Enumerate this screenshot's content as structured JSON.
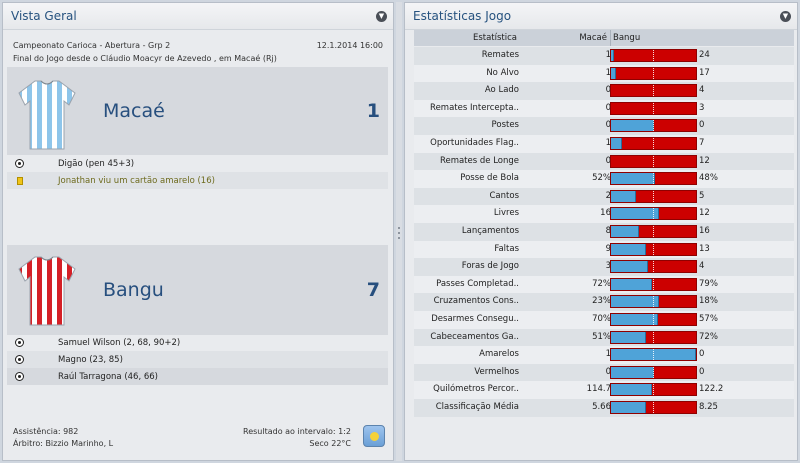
{
  "left_panel": {
    "title": "Vista Geral",
    "competition": "Campeonato Carioca - Abertura - Grp 2",
    "date": "12.1.2014 16:00",
    "status": "Final do Jogo desde o Cláudio Moacyr de Azevedo , em Macaé (Rj)",
    "home": {
      "name": "Macaé",
      "score": "1",
      "shirt_colors": [
        "#8ec5ea",
        "#ffffff"
      ],
      "events": [
        {
          "type": "goal-icon",
          "text": "Digão (pen 45+3)"
        },
        {
          "type": "yellow-card-icon",
          "text": "Jonathan viu um cartão amarelo (16)"
        }
      ]
    },
    "away": {
      "name": "Bangu",
      "score": "7",
      "shirt_colors": [
        "#d42027",
        "#ffffff"
      ],
      "events": [
        {
          "type": "goal-icon",
          "text": "Samuel Wilson (2, 68, 90+2)"
        },
        {
          "type": "goal-icon",
          "text": "Magno (23, 85)"
        },
        {
          "type": "goal-icon",
          "text": "Raúl Tarragona (46, 66)"
        }
      ]
    },
    "attendance": "Assistência: 982",
    "referee": "Árbitro: Bizzio Marinho, L",
    "halftime": "Resultado ao intervalo: 1:2",
    "weather": "Seco 22°C",
    "weather_icon": "sun-icon"
  },
  "right_panel": {
    "title": "Estatísticas Jogo",
    "header": {
      "stat": "Estatística",
      "home": "Macaé",
      "away": "Bangu"
    },
    "colors": {
      "home": "#4fa3d8",
      "away": "#cc0000"
    },
    "stats": [
      {
        "label": "Remates",
        "home": "1",
        "away": "24",
        "home_share": 0.04
      },
      {
        "label": "No Alvo",
        "home": "1",
        "away": "17",
        "home_share": 0.06
      },
      {
        "label": "Ao Lado",
        "home": "0",
        "away": "4",
        "home_share": 0.0
      },
      {
        "label": "Remates Intercepta..",
        "home": "0",
        "away": "3",
        "home_share": 0.0
      },
      {
        "label": "Postes",
        "home": "0",
        "away": "0",
        "home_share": 0.5
      },
      {
        "label": "Oportunidades Flag..",
        "home": "1",
        "away": "7",
        "home_share": 0.13
      },
      {
        "label": "Remates de Longe",
        "home": "0",
        "away": "12",
        "home_share": 0.0
      },
      {
        "label": "Posse de Bola",
        "home": "52%",
        "away": "48%",
        "home_share": 0.52
      },
      {
        "label": "Cantos",
        "home": "2",
        "away": "5",
        "home_share": 0.29
      },
      {
        "label": "Livres",
        "home": "16",
        "away": "12",
        "home_share": 0.57
      },
      {
        "label": "Lançamentos",
        "home": "8",
        "away": "16",
        "home_share": 0.33
      },
      {
        "label": "Faltas",
        "home": "9",
        "away": "13",
        "home_share": 0.41
      },
      {
        "label": "Foras de Jogo",
        "home": "3",
        "away": "4",
        "home_share": 0.43
      },
      {
        "label": "Passes Completad..",
        "home": "72%",
        "away": "79%",
        "home_share": 0.48
      },
      {
        "label": "Cruzamentos Cons..",
        "home": "23%",
        "away": "18%",
        "home_share": 0.56
      },
      {
        "label": "Desarmes Consegu..",
        "home": "70%",
        "away": "57%",
        "home_share": 0.55
      },
      {
        "label": "Cabeceamentos Ga..",
        "home": "51%",
        "away": "72%",
        "home_share": 0.41
      },
      {
        "label": "Amarelos",
        "home": "1",
        "away": "0",
        "home_share": 1.0
      },
      {
        "label": "Vermelhos",
        "home": "0",
        "away": "0",
        "home_share": 0.5
      },
      {
        "label": "Quilómetros Percor..",
        "home": "114.7",
        "away": "122.2",
        "home_share": 0.48
      },
      {
        "label": "Classificação Média",
        "home": "5.66",
        "away": "8.25",
        "home_share": 0.41
      }
    ]
  }
}
